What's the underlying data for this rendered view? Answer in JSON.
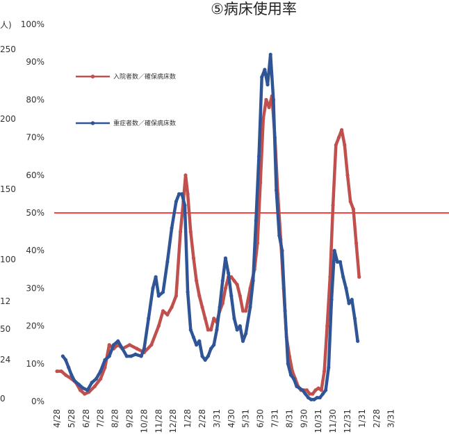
{
  "chart_data": {
    "type": "line",
    "title": "⑤病床使用率",
    "xlabel": "",
    "ylabel": "",
    "ylim": [
      0,
      100
    ],
    "y_tick_labels": [
      "0%",
      "10%",
      "20%",
      "30%",
      "40%",
      "50%",
      "60%",
      "70%",
      "80%",
      "90%",
      "100%"
    ],
    "left_axis_fragments": [
      "0",
      "24",
      "50",
      "12",
      "100",
      "150",
      "200",
      "250",
      "人)"
    ],
    "x_tick_labels": [
      "4/28",
      "5/28",
      "6/28",
      "7/28",
      "8/28",
      "9/28",
      "10/28",
      "11/28",
      "12/28",
      "1/28",
      "2/28",
      "3/31",
      "4/30",
      "5/31",
      "6/30",
      "7/31",
      "8/31",
      "9/30",
      "10/31",
      "11/30",
      "12/31",
      "1/31",
      "2/28",
      "3/31"
    ],
    "reference_line": {
      "y": 50,
      "color": "#ff0000"
    },
    "legend_position": "top-left",
    "series": [
      {
        "name": "入院者数／確保病床数",
        "color": "#c0504d",
        "points": [
          [
            0,
            8
          ],
          [
            0.3,
            8
          ],
          [
            0.6,
            7
          ],
          [
            1,
            6
          ],
          [
            1.3,
            5
          ],
          [
            1.6,
            3
          ],
          [
            1.9,
            2
          ],
          [
            2.2,
            2.5
          ],
          [
            2.6,
            4
          ],
          [
            3,
            6
          ],
          [
            3.3,
            9
          ],
          [
            3.6,
            15
          ],
          [
            3.9,
            14
          ],
          [
            4.2,
            15
          ],
          [
            4.5,
            14
          ],
          [
            5,
            15
          ],
          [
            5.5,
            14
          ],
          [
            6,
            13
          ],
          [
            6.5,
            15
          ],
          [
            7,
            20
          ],
          [
            7.3,
            24
          ],
          [
            7.6,
            23
          ],
          [
            7.9,
            25
          ],
          [
            8.2,
            28
          ],
          [
            8.5,
            45
          ],
          [
            8.7,
            53
          ],
          [
            8.85,
            60
          ],
          [
            9,
            55
          ],
          [
            9.2,
            45
          ],
          [
            9.4,
            38
          ],
          [
            9.6,
            32
          ],
          [
            9.8,
            28
          ],
          [
            10,
            25
          ],
          [
            10.2,
            22
          ],
          [
            10.4,
            19
          ],
          [
            10.6,
            19
          ],
          [
            10.8,
            22
          ],
          [
            11,
            21
          ],
          [
            11.2,
            24
          ],
          [
            11.4,
            26
          ],
          [
            11.6,
            30
          ],
          [
            11.8,
            33
          ],
          [
            12,
            33
          ],
          [
            12.2,
            32
          ],
          [
            12.4,
            31
          ],
          [
            12.6,
            28
          ],
          [
            12.8,
            24
          ],
          [
            13,
            24
          ],
          [
            13.3,
            30
          ],
          [
            13.6,
            35
          ],
          [
            13.8,
            42
          ],
          [
            14,
            58
          ],
          [
            14.2,
            75
          ],
          [
            14.4,
            80
          ],
          [
            14.6,
            78
          ],
          [
            14.8,
            81
          ],
          [
            15,
            70
          ],
          [
            15.2,
            55
          ],
          [
            15.4,
            43
          ],
          [
            15.6,
            30
          ],
          [
            15.8,
            17
          ],
          [
            16,
            12
          ],
          [
            16.2,
            8
          ],
          [
            16.4,
            6
          ],
          [
            16.6,
            4
          ],
          [
            16.8,
            3
          ],
          [
            17,
            3
          ],
          [
            17.2,
            3
          ],
          [
            17.4,
            2
          ],
          [
            17.6,
            2
          ],
          [
            17.8,
            3
          ],
          [
            18,
            3.5
          ],
          [
            18.2,
            3
          ],
          [
            18.4,
            8
          ],
          [
            18.6,
            20
          ],
          [
            18.8,
            33
          ],
          [
            19,
            52
          ],
          [
            19.2,
            68
          ],
          [
            19.4,
            70
          ],
          [
            19.6,
            72
          ],
          [
            19.8,
            68
          ],
          [
            20,
            60
          ],
          [
            20.2,
            53
          ],
          [
            20.4,
            51
          ],
          [
            20.6,
            42
          ],
          [
            20.8,
            33
          ]
        ]
      },
      {
        "name": "重症者数／確保病床数",
        "color": "#2f5597",
        "points": [
          [
            0.4,
            12
          ],
          [
            0.6,
            11
          ],
          [
            0.8,
            9
          ],
          [
            1,
            7
          ],
          [
            1.2,
            5.5
          ],
          [
            1.5,
            4.5
          ],
          [
            1.8,
            3.5
          ],
          [
            2.1,
            3
          ],
          [
            2.4,
            5
          ],
          [
            2.7,
            6
          ],
          [
            3,
            8
          ],
          [
            3.3,
            11
          ],
          [
            3.6,
            12
          ],
          [
            3.9,
            15
          ],
          [
            4.2,
            16
          ],
          [
            4.5,
            14
          ],
          [
            4.8,
            12
          ],
          [
            5.1,
            12
          ],
          [
            5.4,
            12.5
          ],
          [
            5.8,
            12
          ],
          [
            6,
            14
          ],
          [
            6.3,
            22
          ],
          [
            6.6,
            30
          ],
          [
            6.8,
            33
          ],
          [
            7,
            28
          ],
          [
            7.3,
            29
          ],
          [
            7.6,
            37
          ],
          [
            7.9,
            46
          ],
          [
            8.2,
            53
          ],
          [
            8.4,
            55
          ],
          [
            8.6,
            55
          ],
          [
            8.8,
            52
          ],
          [
            9,
            29
          ],
          [
            9.2,
            19
          ],
          [
            9.4,
            17
          ],
          [
            9.6,
            15
          ],
          [
            9.8,
            16
          ],
          [
            10,
            12
          ],
          [
            10.2,
            11
          ],
          [
            10.4,
            12
          ],
          [
            10.6,
            14
          ],
          [
            10.8,
            15
          ],
          [
            11,
            19
          ],
          [
            11.2,
            25
          ],
          [
            11.4,
            32
          ],
          [
            11.6,
            38
          ],
          [
            11.8,
            34
          ],
          [
            12,
            28
          ],
          [
            12.2,
            22
          ],
          [
            12.4,
            19
          ],
          [
            12.6,
            20
          ],
          [
            12.8,
            16
          ],
          [
            13,
            18
          ],
          [
            13.3,
            25
          ],
          [
            13.5,
            32
          ],
          [
            13.7,
            48
          ],
          [
            13.9,
            65
          ],
          [
            14.1,
            86
          ],
          [
            14.3,
            88
          ],
          [
            14.5,
            84
          ],
          [
            14.7,
            92
          ],
          [
            14.9,
            80
          ],
          [
            15.1,
            56
          ],
          [
            15.3,
            44
          ],
          [
            15.5,
            40
          ],
          [
            15.7,
            24
          ],
          [
            15.9,
            10
          ],
          [
            16.1,
            7
          ],
          [
            16.3,
            6
          ],
          [
            16.5,
            4
          ],
          [
            16.7,
            3.5
          ],
          [
            16.9,
            3
          ],
          [
            17.1,
            2
          ],
          [
            17.3,
            1
          ],
          [
            17.5,
            0.5
          ],
          [
            17.7,
            0.5
          ],
          [
            17.9,
            1
          ],
          [
            18.1,
            1
          ],
          [
            18.3,
            2
          ],
          [
            18.5,
            3
          ],
          [
            18.7,
            9
          ],
          [
            18.9,
            27
          ],
          [
            19.1,
            40
          ],
          [
            19.3,
            37
          ],
          [
            19.5,
            37
          ],
          [
            19.7,
            33
          ],
          [
            19.9,
            30
          ],
          [
            20.1,
            26
          ],
          [
            20.3,
            27
          ],
          [
            20.5,
            22
          ],
          [
            20.7,
            16
          ]
        ]
      }
    ]
  }
}
